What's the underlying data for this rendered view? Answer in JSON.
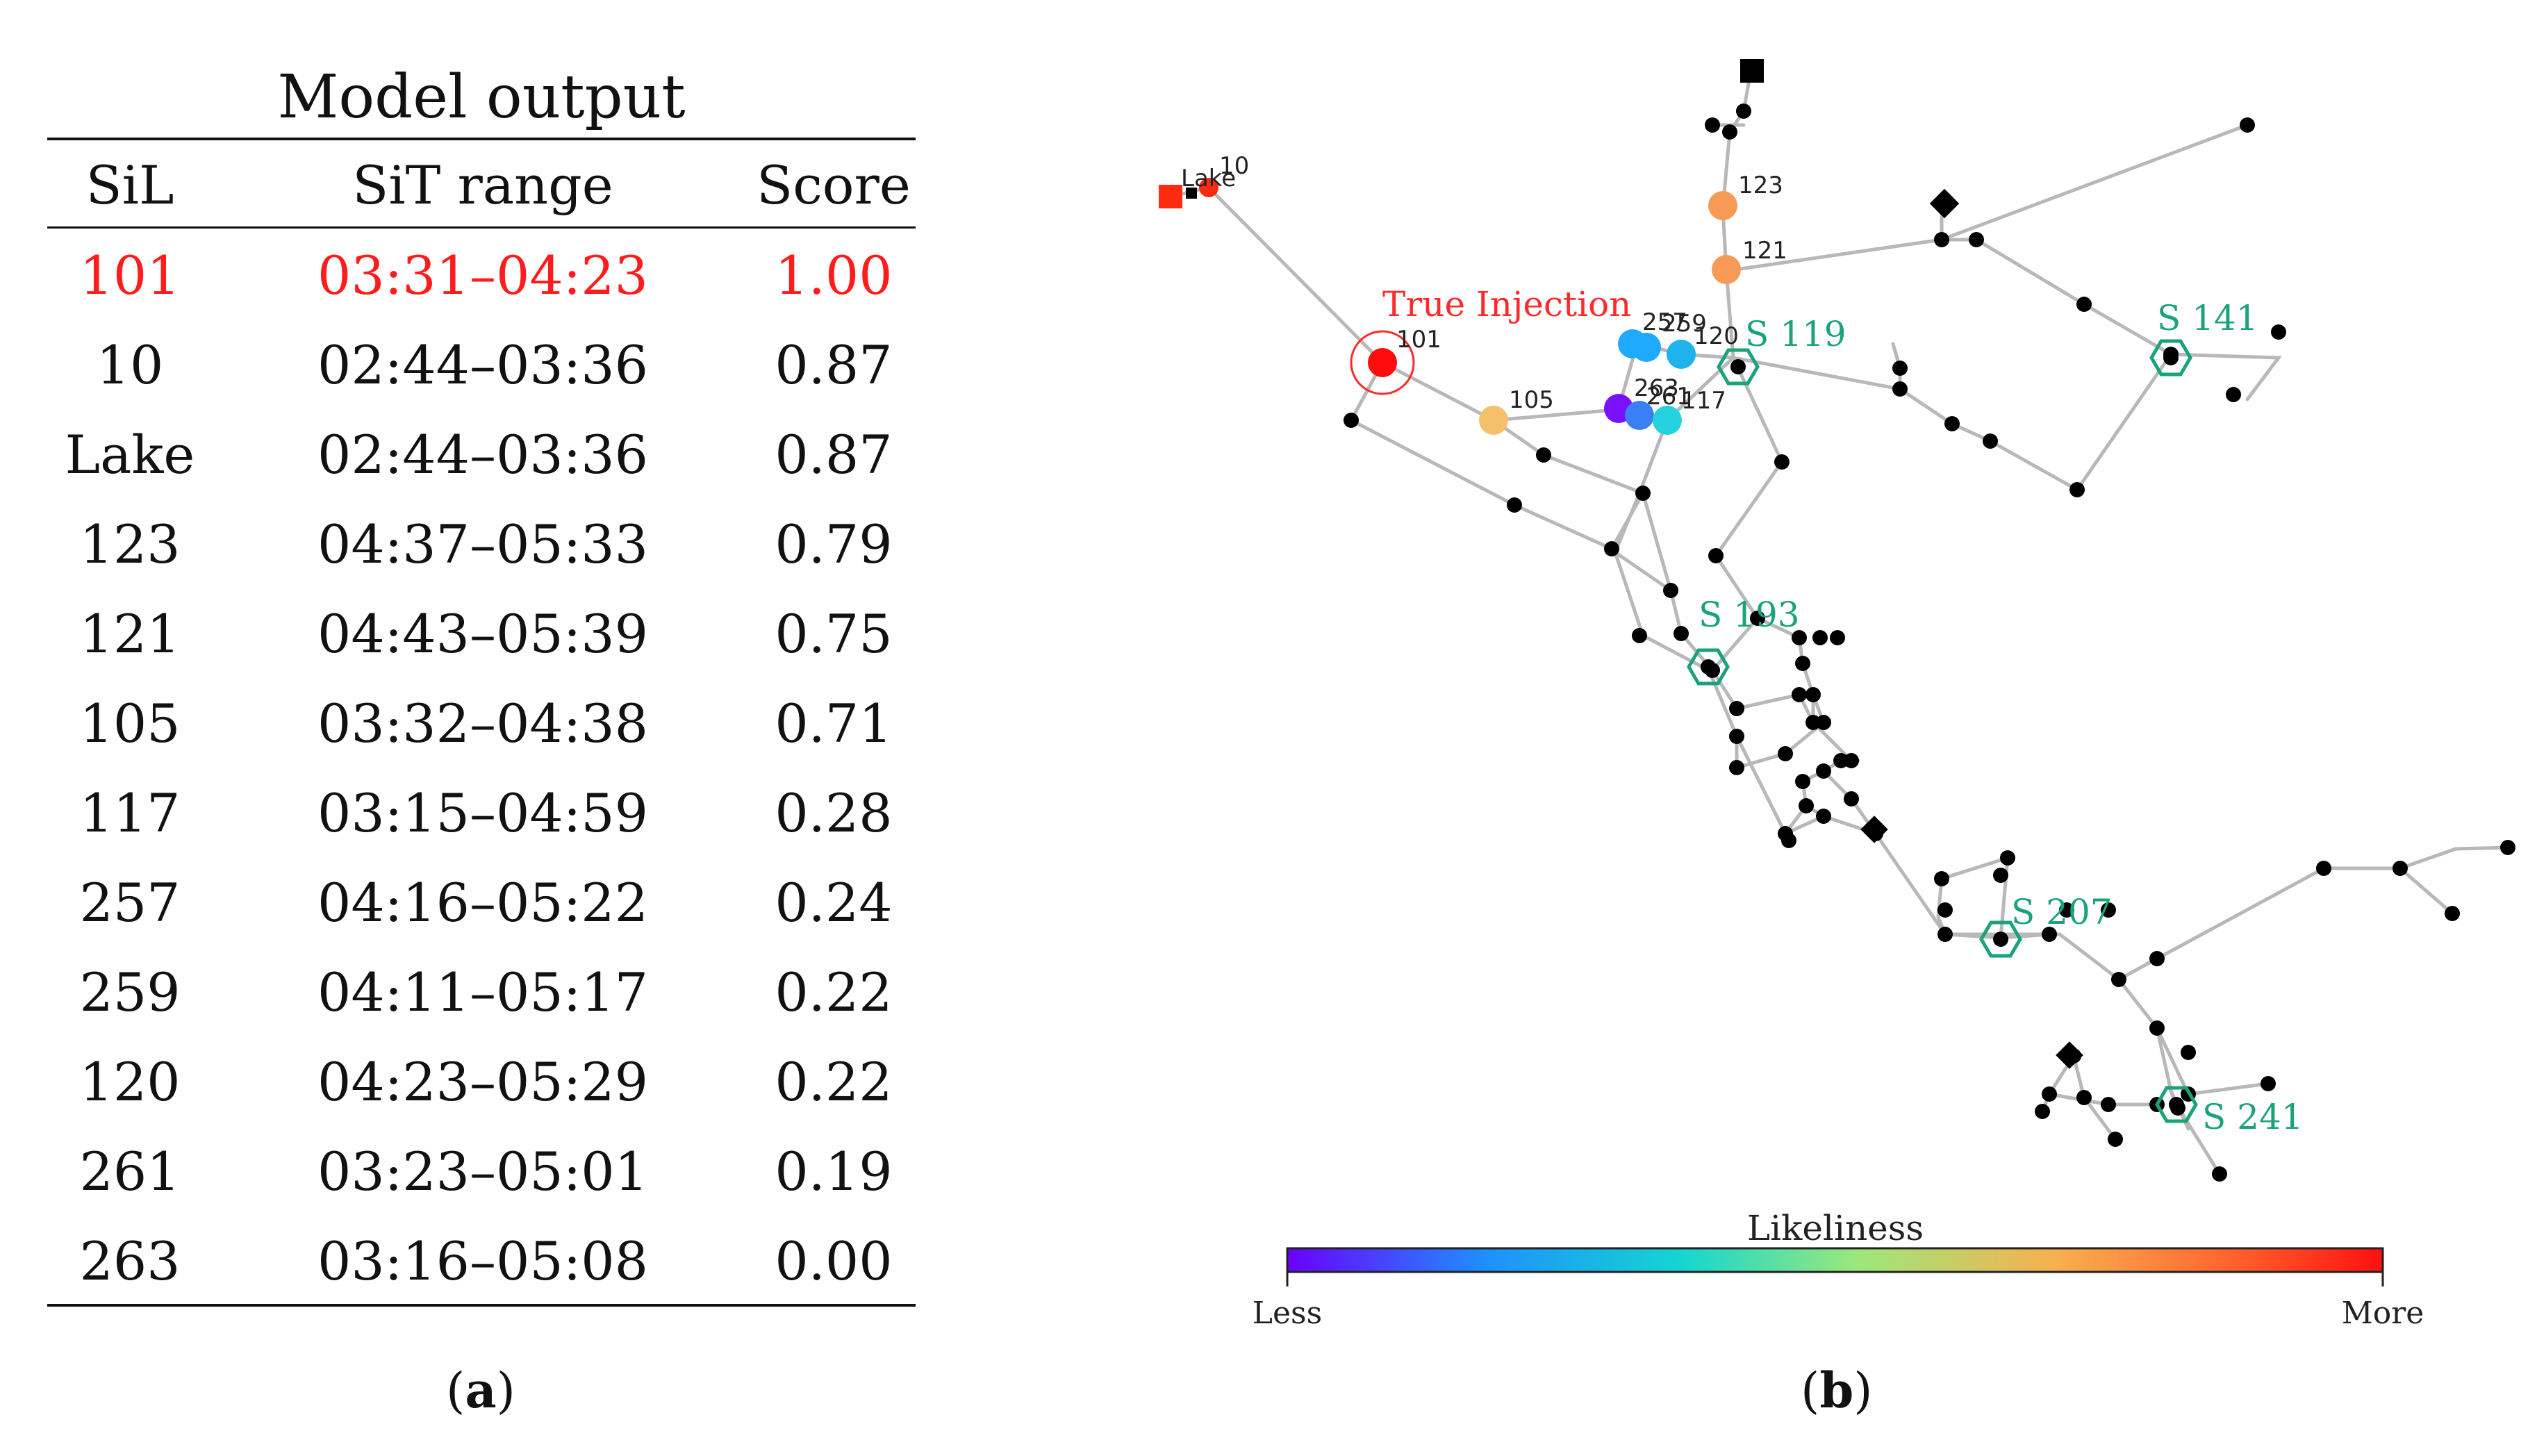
{
  "table": {
    "title": "Model output",
    "headers": [
      "SiL",
      "SiT range",
      "Score"
    ],
    "rows": [
      {
        "sil": "101",
        "range": "03:31–04:23",
        "score": "1.00",
        "highlight": true
      },
      {
        "sil": "10",
        "range": "02:44–03:36",
        "score": "0.87"
      },
      {
        "sil": "Lake",
        "range": "02:44–03:36",
        "score": "0.87"
      },
      {
        "sil": "123",
        "range": "04:37–05:33",
        "score": "0.79"
      },
      {
        "sil": "121",
        "range": "04:43–05:39",
        "score": "0.75"
      },
      {
        "sil": "105",
        "range": "03:32–04:38",
        "score": "0.71"
      },
      {
        "sil": "117",
        "range": "03:15–04:59",
        "score": "0.28"
      },
      {
        "sil": "257",
        "range": "04:16–05:22",
        "score": "0.24"
      },
      {
        "sil": "259",
        "range": "04:11–05:17",
        "score": "0.22"
      },
      {
        "sil": "120",
        "range": "04:23–05:29",
        "score": "0.22"
      },
      {
        "sil": "261",
        "range": "03:23–05:01",
        "score": "0.19"
      },
      {
        "sil": "263",
        "range": "03:16–05:08",
        "score": "0.00"
      }
    ],
    "highlight_color": "#ff1c1c"
  },
  "labels": {
    "panel_a": {
      "open": "(",
      "letter": "a",
      "close": ")"
    },
    "panel_b": {
      "open": "(",
      "letter": "b",
      "close": ")"
    }
  },
  "network": {
    "true_injection_label": "True Injection",
    "node_labels": [
      "10",
      "Lake",
      "123",
      "121",
      "101",
      "105",
      "259",
      "257",
      "120",
      "263",
      "261",
      "117"
    ],
    "sensors": [
      "S 119",
      "S 141",
      "S 193",
      "S 207",
      "S 241"
    ],
    "colors": {
      "edge": "#b8b8b8",
      "junction": "#000000",
      "sensor": "#1aa37a",
      "injection": "#ff2a2a"
    }
  },
  "colorbar": {
    "title": "Likeliness",
    "low_label": "Less",
    "high_label": "More",
    "stops": [
      "#6a00ff",
      "#1f8fff",
      "#14d6d0",
      "#9be87a",
      "#f7b050",
      "#ff6a30",
      "#ff1010"
    ]
  }
}
